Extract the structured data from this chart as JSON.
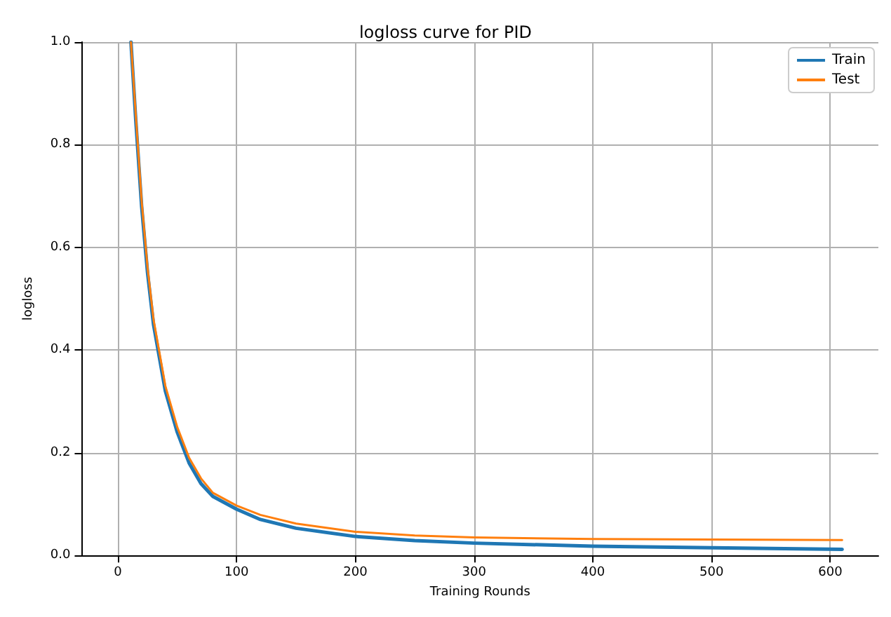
{
  "chart_data": {
    "type": "line",
    "title": "logloss curve for PID",
    "xlabel": "Training Rounds",
    "ylabel": "logloss",
    "xlim": [
      -30.5,
      640.5
    ],
    "xticks": [
      0,
      100,
      200,
      300,
      400,
      500,
      600
    ],
    "ylim": [
      0,
      1
    ],
    "yticks": [
      {
        "value": 0,
        "label": "0.0"
      },
      {
        "value": 0.2,
        "label": "0.2"
      },
      {
        "value": 0.4,
        "label": "0.4"
      },
      {
        "value": 0.6,
        "label": "0.6"
      },
      {
        "value": 0.8,
        "label": "0.8"
      },
      {
        "value": 1,
        "label": "1.0"
      }
    ],
    "grid": true,
    "legend": "top right",
    "marker": "none",
    "line_style": "solid",
    "x": [
      11,
      15,
      20,
      25,
      30,
      40,
      50,
      60,
      70,
      80,
      100,
      120,
      150,
      200,
      250,
      300,
      400,
      500,
      610
    ],
    "series": [
      {
        "name": "Train",
        "color": "#1f77b4",
        "values": [
          1.0,
          0.85,
          0.68,
          0.55,
          0.45,
          0.32,
          0.24,
          0.18,
          0.14,
          0.115,
          0.09,
          0.07,
          0.053,
          0.037,
          0.029,
          0.024,
          0.018,
          0.015,
          0.012
        ]
      },
      {
        "name": "Test",
        "color": "#ff7f0e",
        "values": [
          1.0,
          0.86,
          0.69,
          0.56,
          0.46,
          0.33,
          0.25,
          0.19,
          0.15,
          0.122,
          0.097,
          0.079,
          0.062,
          0.046,
          0.039,
          0.035,
          0.032,
          0.031,
          0.03
        ]
      }
    ]
  }
}
